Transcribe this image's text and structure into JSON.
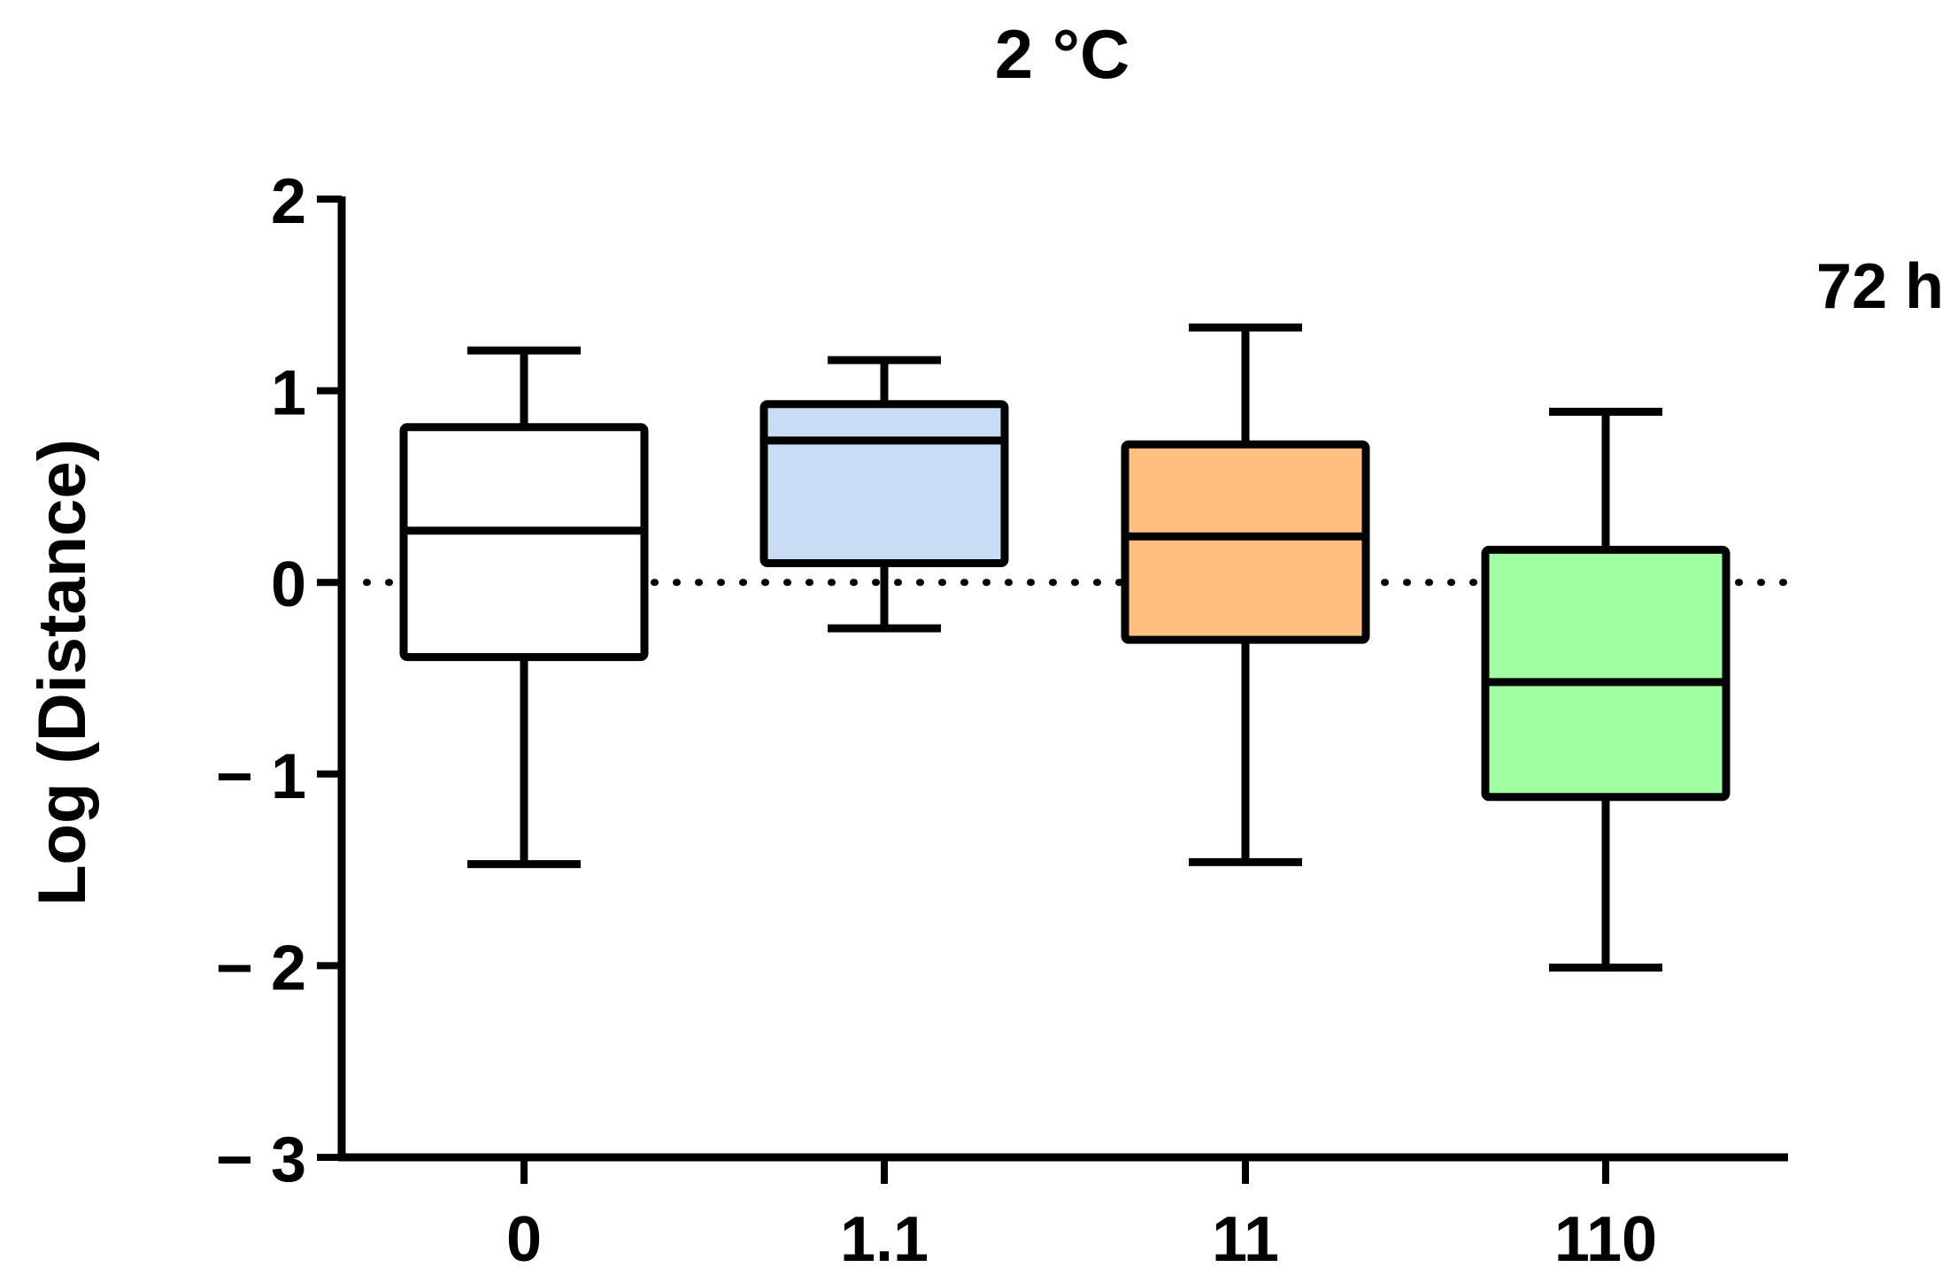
{
  "chart_data": {
    "type": "box",
    "title": "2 °C",
    "annotation": "72 h",
    "ylabel": "Log (Distance)",
    "xlabel": "",
    "ylim": [
      -3,
      2
    ],
    "yticks": [
      {
        "value": 2,
        "label": "2"
      },
      {
        "value": 1,
        "label": "1"
      },
      {
        "value": 0,
        "label": "0"
      },
      {
        "value": -1,
        "label": "− 1"
      },
      {
        "value": -2,
        "label": "− 2"
      },
      {
        "value": -3,
        "label": "− 3"
      }
    ],
    "reference_line": {
      "value": 0,
      "style": "dotted"
    },
    "categories": [
      "0",
      "1.1",
      "11",
      "110"
    ],
    "boxes": [
      {
        "category": "0",
        "min": -1.47,
        "q1": -0.39,
        "median": 0.27,
        "q3": 0.81,
        "max": 1.21,
        "color": "#ffffff"
      },
      {
        "category": "1.1",
        "min": -0.24,
        "q1": 0.1,
        "median": 0.74,
        "q3": 0.93,
        "max": 1.16,
        "color": "#c9dcf5"
      },
      {
        "category": "11",
        "min": -1.46,
        "q1": -0.3,
        "median": 0.24,
        "q3": 0.72,
        "max": 1.33,
        "color": "#ffbf80"
      },
      {
        "category": "110",
        "min": -2.01,
        "q1": -1.12,
        "median": -0.52,
        "q3": 0.17,
        "max": 0.89,
        "color": "#a0ffa0"
      }
    ]
  }
}
